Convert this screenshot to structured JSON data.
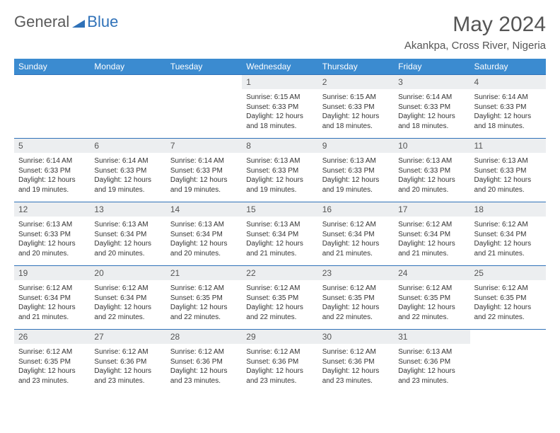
{
  "brand": {
    "word1": "General",
    "word2": "Blue",
    "color": "#2f71b8"
  },
  "title": "May 2024",
  "location": "Akankpa, Cross River, Nigeria",
  "headers": [
    "Sunday",
    "Monday",
    "Tuesday",
    "Wednesday",
    "Thursday",
    "Friday",
    "Saturday"
  ],
  "header_bg": "#3b8bd0",
  "daynum_bg": "#eceef0",
  "rule_color": "#2f71b8",
  "weeks": [
    [
      null,
      null,
      null,
      {
        "d": "1",
        "sr": "6:15 AM",
        "ss": "6:33 PM",
        "dl": "12 hours and 18 minutes."
      },
      {
        "d": "2",
        "sr": "6:15 AM",
        "ss": "6:33 PM",
        "dl": "12 hours and 18 minutes."
      },
      {
        "d": "3",
        "sr": "6:14 AM",
        "ss": "6:33 PM",
        "dl": "12 hours and 18 minutes."
      },
      {
        "d": "4",
        "sr": "6:14 AM",
        "ss": "6:33 PM",
        "dl": "12 hours and 18 minutes."
      }
    ],
    [
      {
        "d": "5",
        "sr": "6:14 AM",
        "ss": "6:33 PM",
        "dl": "12 hours and 19 minutes."
      },
      {
        "d": "6",
        "sr": "6:14 AM",
        "ss": "6:33 PM",
        "dl": "12 hours and 19 minutes."
      },
      {
        "d": "7",
        "sr": "6:14 AM",
        "ss": "6:33 PM",
        "dl": "12 hours and 19 minutes."
      },
      {
        "d": "8",
        "sr": "6:13 AM",
        "ss": "6:33 PM",
        "dl": "12 hours and 19 minutes."
      },
      {
        "d": "9",
        "sr": "6:13 AM",
        "ss": "6:33 PM",
        "dl": "12 hours and 19 minutes."
      },
      {
        "d": "10",
        "sr": "6:13 AM",
        "ss": "6:33 PM",
        "dl": "12 hours and 20 minutes."
      },
      {
        "d": "11",
        "sr": "6:13 AM",
        "ss": "6:33 PM",
        "dl": "12 hours and 20 minutes."
      }
    ],
    [
      {
        "d": "12",
        "sr": "6:13 AM",
        "ss": "6:33 PM",
        "dl": "12 hours and 20 minutes."
      },
      {
        "d": "13",
        "sr": "6:13 AM",
        "ss": "6:34 PM",
        "dl": "12 hours and 20 minutes."
      },
      {
        "d": "14",
        "sr": "6:13 AM",
        "ss": "6:34 PM",
        "dl": "12 hours and 20 minutes."
      },
      {
        "d": "15",
        "sr": "6:13 AM",
        "ss": "6:34 PM",
        "dl": "12 hours and 21 minutes."
      },
      {
        "d": "16",
        "sr": "6:12 AM",
        "ss": "6:34 PM",
        "dl": "12 hours and 21 minutes."
      },
      {
        "d": "17",
        "sr": "6:12 AM",
        "ss": "6:34 PM",
        "dl": "12 hours and 21 minutes."
      },
      {
        "d": "18",
        "sr": "6:12 AM",
        "ss": "6:34 PM",
        "dl": "12 hours and 21 minutes."
      }
    ],
    [
      {
        "d": "19",
        "sr": "6:12 AM",
        "ss": "6:34 PM",
        "dl": "12 hours and 21 minutes."
      },
      {
        "d": "20",
        "sr": "6:12 AM",
        "ss": "6:34 PM",
        "dl": "12 hours and 22 minutes."
      },
      {
        "d": "21",
        "sr": "6:12 AM",
        "ss": "6:35 PM",
        "dl": "12 hours and 22 minutes."
      },
      {
        "d": "22",
        "sr": "6:12 AM",
        "ss": "6:35 PM",
        "dl": "12 hours and 22 minutes."
      },
      {
        "d": "23",
        "sr": "6:12 AM",
        "ss": "6:35 PM",
        "dl": "12 hours and 22 minutes."
      },
      {
        "d": "24",
        "sr": "6:12 AM",
        "ss": "6:35 PM",
        "dl": "12 hours and 22 minutes."
      },
      {
        "d": "25",
        "sr": "6:12 AM",
        "ss": "6:35 PM",
        "dl": "12 hours and 22 minutes."
      }
    ],
    [
      {
        "d": "26",
        "sr": "6:12 AM",
        "ss": "6:35 PM",
        "dl": "12 hours and 23 minutes."
      },
      {
        "d": "27",
        "sr": "6:12 AM",
        "ss": "6:36 PM",
        "dl": "12 hours and 23 minutes."
      },
      {
        "d": "28",
        "sr": "6:12 AM",
        "ss": "6:36 PM",
        "dl": "12 hours and 23 minutes."
      },
      {
        "d": "29",
        "sr": "6:12 AM",
        "ss": "6:36 PM",
        "dl": "12 hours and 23 minutes."
      },
      {
        "d": "30",
        "sr": "6:12 AM",
        "ss": "6:36 PM",
        "dl": "12 hours and 23 minutes."
      },
      {
        "d": "31",
        "sr": "6:13 AM",
        "ss": "6:36 PM",
        "dl": "12 hours and 23 minutes."
      },
      null
    ]
  ],
  "labels": {
    "sunrise": "Sunrise: ",
    "sunset": "Sunset: ",
    "daylight": "Daylight: "
  }
}
